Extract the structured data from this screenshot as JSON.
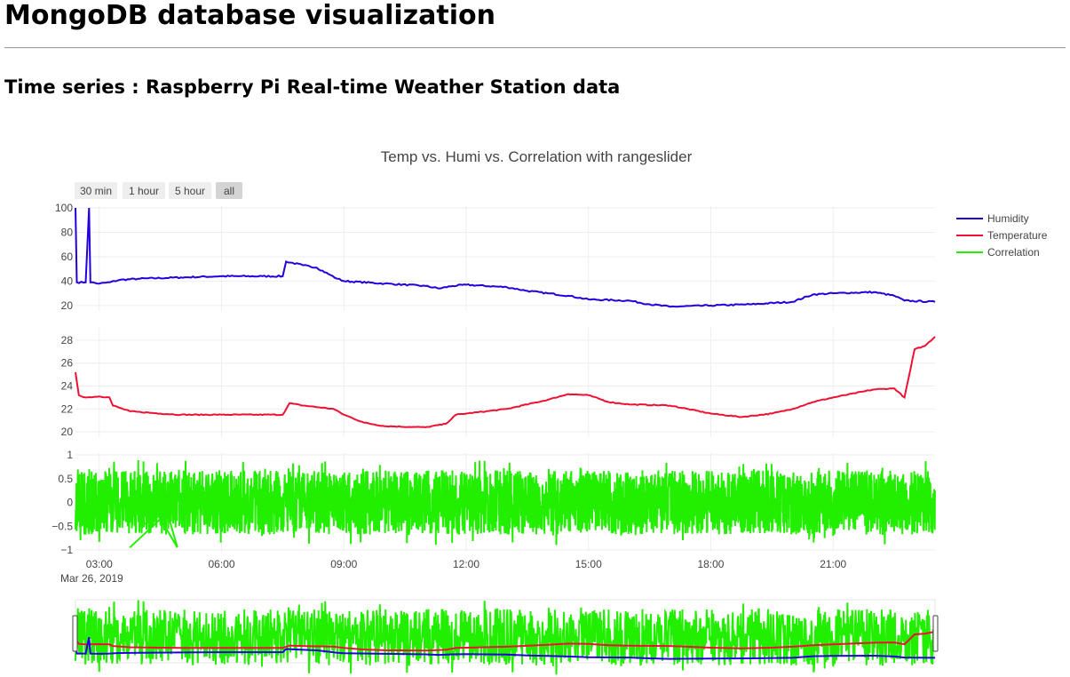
{
  "page": {
    "title": "MongoDB database visualization",
    "subtitle": "Time series : Raspberry Pi Real-time Weather Station data"
  },
  "chart": {
    "title": "Temp vs. Humi vs. Correlation with rangeslider",
    "range_buttons": [
      {
        "label": "30 min",
        "active": false
      },
      {
        "label": "1 hour",
        "active": false
      },
      {
        "label": "5 hour",
        "active": false
      },
      {
        "label": "all",
        "active": true
      }
    ],
    "legend": [
      {
        "name": "Humidity",
        "color": "#2200dd"
      },
      {
        "name": "Temperature",
        "color": "#ee1133"
      },
      {
        "name": "Correlation",
        "color": "#22ee00"
      }
    ],
    "x_tick_labels": [
      "03:00",
      "06:00",
      "09:00",
      "12:00",
      "15:00",
      "18:00",
      "21:00"
    ],
    "x_date_label": "Mar 26, 2019",
    "humidity_ticks": [
      "20",
      "40",
      "60",
      "80",
      "100"
    ],
    "temperature_ticks": [
      "20",
      "22",
      "24",
      "26",
      "28"
    ],
    "correlation_ticks": [
      "−1",
      "−0.5",
      "0",
      "0.5",
      "1"
    ]
  },
  "chart_data": {
    "type": "line",
    "title": "Temp vs. Humi vs. Correlation with rangeslider",
    "x_axis": {
      "type": "date",
      "range": [
        "2019-03-26 02:25",
        "2019-03-26 23:30"
      ],
      "ticks": [
        "03:00",
        "06:00",
        "09:00",
        "12:00",
        "15:00",
        "18:00",
        "21:00"
      ],
      "date_label": "Mar 26, 2019"
    },
    "legend_position": "top-right",
    "rangeslider": true,
    "grid": true,
    "series": [
      {
        "name": "Humidity",
        "color": "#2200dd",
        "subplot": "top",
        "ylim": [
          17,
          100
        ],
        "points": [
          [
            "02:25",
            100
          ],
          [
            "02:27",
            39
          ],
          [
            "02:40",
            39
          ],
          [
            "02:45",
            100
          ],
          [
            "02:47",
            39
          ],
          [
            "03:00",
            38
          ],
          [
            "03:15",
            39
          ],
          [
            "03:30",
            41
          ],
          [
            "04:00",
            42
          ],
          [
            "05:00",
            43
          ],
          [
            "06:00",
            44
          ],
          [
            "07:00",
            44
          ],
          [
            "07:30",
            44
          ],
          [
            "07:35",
            56
          ],
          [
            "08:00",
            53
          ],
          [
            "08:20",
            51
          ],
          [
            "08:40",
            45
          ],
          [
            "08:50",
            42
          ],
          [
            "09:00",
            40
          ],
          [
            "10:00",
            38
          ],
          [
            "11:00",
            36
          ],
          [
            "11:20",
            34
          ],
          [
            "11:40",
            36
          ],
          [
            "12:00",
            37
          ],
          [
            "13:00",
            35
          ],
          [
            "13:30",
            32
          ],
          [
            "14:00",
            30
          ],
          [
            "14:30",
            28
          ],
          [
            "15:00",
            25
          ],
          [
            "16:00",
            24
          ],
          [
            "16:30",
            21
          ],
          [
            "17:00",
            19
          ],
          [
            "18:00",
            20
          ],
          [
            "19:00",
            21
          ],
          [
            "20:00",
            23
          ],
          [
            "20:30",
            29
          ],
          [
            "21:00",
            30
          ],
          [
            "22:00",
            31
          ],
          [
            "22:30",
            28
          ],
          [
            "22:45",
            24
          ],
          [
            "23:30",
            23
          ]
        ]
      },
      {
        "name": "Temperature",
        "color": "#ee1133",
        "subplot": "middle",
        "ylim": [
          19.7,
          29
        ],
        "points": [
          [
            "02:25",
            25.2
          ],
          [
            "02:30",
            23.2
          ],
          [
            "02:40",
            23.0
          ],
          [
            "03:00",
            23.1
          ],
          [
            "03:15",
            23.0
          ],
          [
            "03:20",
            22.3
          ],
          [
            "03:45",
            21.8
          ],
          [
            "04:30",
            21.6
          ],
          [
            "05:00",
            21.5
          ],
          [
            "06:00",
            21.5
          ],
          [
            "07:30",
            21.5
          ],
          [
            "07:40",
            22.5
          ],
          [
            "08:00",
            22.3
          ],
          [
            "08:45",
            22.0
          ],
          [
            "09:00",
            21.5
          ],
          [
            "09:30",
            20.8
          ],
          [
            "10:00",
            20.5
          ],
          [
            "11:00",
            20.4
          ],
          [
            "11:30",
            20.7
          ],
          [
            "11:45",
            21.5
          ],
          [
            "12:00",
            21.6
          ],
          [
            "13:00",
            22.0
          ],
          [
            "14:00",
            22.8
          ],
          [
            "14:30",
            23.3
          ],
          [
            "15:00",
            23.2
          ],
          [
            "15:30",
            22.6
          ],
          [
            "16:00",
            22.4
          ],
          [
            "17:00",
            22.3
          ],
          [
            "18:00",
            21.6
          ],
          [
            "18:45",
            21.3
          ],
          [
            "19:30",
            21.6
          ],
          [
            "20:00",
            22.0
          ],
          [
            "20:30",
            22.6
          ],
          [
            "21:00",
            23.0
          ],
          [
            "22:00",
            23.7
          ],
          [
            "22:30",
            23.8
          ],
          [
            "22:45",
            23.0
          ],
          [
            "23:00",
            27.2
          ],
          [
            "23:15",
            27.5
          ],
          [
            "23:30",
            28.3
          ]
        ]
      },
      {
        "name": "Correlation",
        "color": "#22ee00",
        "subplot": "bottom",
        "ylim": [
          -1,
          1
        ],
        "description_points": "dense noise roughly between -0.8 and 0.8 across the full time range"
      }
    ]
  }
}
